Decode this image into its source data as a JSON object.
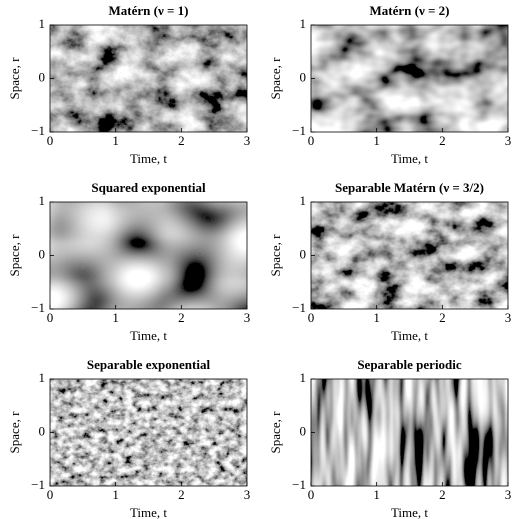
{
  "chart_data": [
    {
      "type": "heatmap",
      "title": "Matérn (ν = 1)",
      "xlabel": "Time, t",
      "ylabel": "Space, r",
      "xlim": [
        0,
        3
      ],
      "ylim": [
        -1,
        1
      ],
      "xticks": [
        0,
        1,
        2,
        3
      ],
      "yticks": [
        {
          "value": -1,
          "label": "−1"
        },
        0,
        1
      ]
    },
    {
      "type": "heatmap",
      "title": "Matérn (ν = 2)",
      "xlabel": "Time, t",
      "ylabel": "Space, r",
      "xlim": [
        0,
        3
      ],
      "ylim": [
        -1,
        1
      ],
      "xticks": [
        0,
        1,
        2,
        3
      ],
      "yticks": [
        {
          "value": -1,
          "label": "−1"
        },
        0,
        1
      ]
    },
    {
      "type": "heatmap",
      "title": "Squared exponential",
      "xlabel": "Time, t",
      "ylabel": "Space, r",
      "xlim": [
        0,
        3
      ],
      "ylim": [
        -1,
        1
      ],
      "xticks": [
        0,
        1,
        2,
        3
      ],
      "yticks": [
        {
          "value": -1,
          "label": "−1"
        },
        0,
        1
      ]
    },
    {
      "type": "heatmap",
      "title": "Separable Matérn (ν = 3/2)",
      "xlabel": "Time, t",
      "ylabel": "Space, r",
      "xlim": [
        0,
        3
      ],
      "ylim": [
        -1,
        1
      ],
      "xticks": [
        0,
        1,
        2,
        3
      ],
      "yticks": [
        {
          "value": -1,
          "label": "−1"
        },
        0,
        1
      ]
    },
    {
      "type": "heatmap",
      "title": "Separable exponential",
      "xlabel": "Time, t",
      "ylabel": "Space, r",
      "xlim": [
        0,
        3
      ],
      "ylim": [
        -1,
        1
      ],
      "xticks": [
        0,
        1,
        2,
        3
      ],
      "yticks": [
        {
          "value": -1,
          "label": "−1"
        },
        0,
        1
      ]
    },
    {
      "type": "heatmap",
      "title": "Separable periodic",
      "xlabel": "Time, t",
      "ylabel": "Space, r",
      "xlim": [
        0,
        3
      ],
      "ylim": [
        -1,
        1
      ],
      "xticks": [
        0,
        1,
        2,
        3
      ],
      "yticks": [
        {
          "value": -1,
          "label": "−1"
        },
        0,
        1
      ]
    }
  ]
}
